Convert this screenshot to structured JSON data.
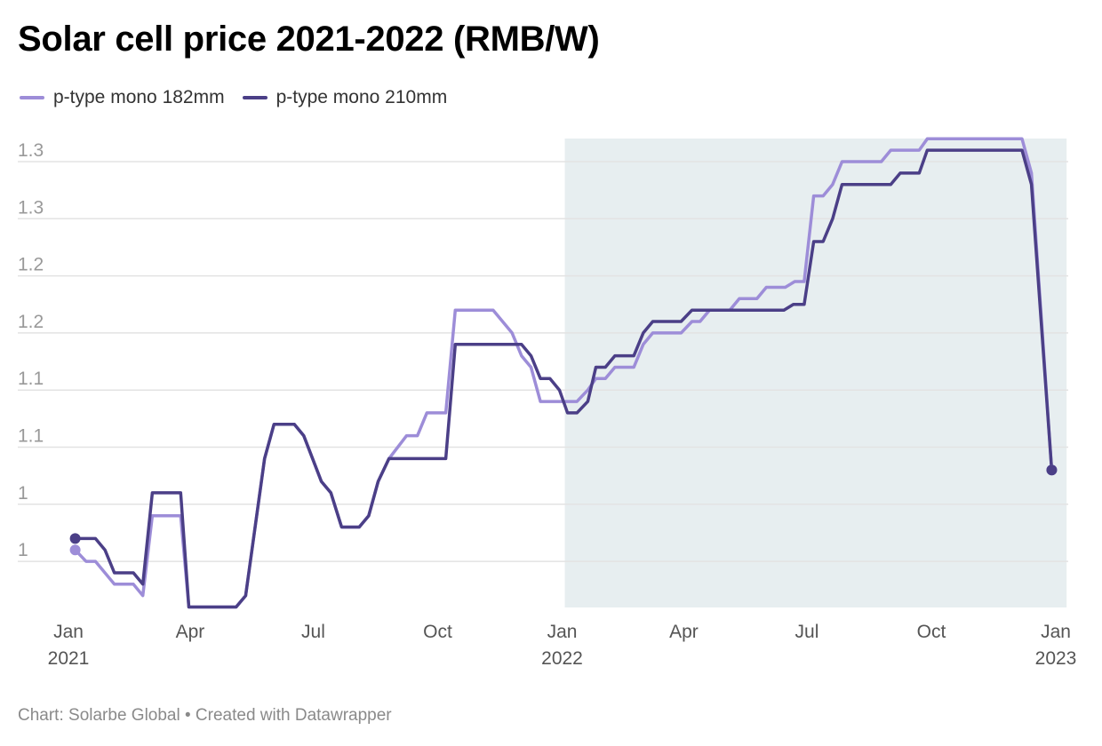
{
  "chart_data": {
    "type": "line",
    "title": "Solar cell price 2021-2022 (RMB/W)",
    "xlim": [
      "2021-01-01",
      "2023-01-01"
    ],
    "ylim": [
      0.91,
      1.32
    ],
    "grid": true,
    "legend_placement": "top-left",
    "highlight_range": [
      "2022-01-03",
      "2023-01-09"
    ],
    "highlight_color": "#e7eef0",
    "y_ticks": [
      {
        "value": 1.3,
        "label": "1.3"
      },
      {
        "value": 1.25,
        "label": "1.3"
      },
      {
        "value": 1.2,
        "label": "1.2"
      },
      {
        "value": 1.15,
        "label": "1.2"
      },
      {
        "value": 1.1,
        "label": "1.1"
      },
      {
        "value": 1.05,
        "label": "1.1"
      },
      {
        "value": 1.0,
        "label": "1"
      },
      {
        "value": 0.95,
        "label": "1"
      }
    ],
    "x_ticks": [
      {
        "date": "2021-01-01",
        "label": "Jan",
        "year": "2021"
      },
      {
        "date": "2021-04-01",
        "label": "Apr",
        "year": ""
      },
      {
        "date": "2021-07-01",
        "label": "Jul",
        "year": ""
      },
      {
        "date": "2021-10-01",
        "label": "Oct",
        "year": ""
      },
      {
        "date": "2022-01-01",
        "label": "Jan",
        "year": "2022"
      },
      {
        "date": "2022-04-01",
        "label": "Apr",
        "year": ""
      },
      {
        "date": "2022-07-01",
        "label": "Jul",
        "year": ""
      },
      {
        "date": "2022-10-01",
        "label": "Oct",
        "year": ""
      },
      {
        "date": "2023-01-01",
        "label": "Jan",
        "year": "2023"
      }
    ],
    "series": [
      {
        "name": "p-type mono 182mm",
        "color": "#9d8dd8",
        "points": [
          [
            "2021-01-06",
            0.96
          ],
          [
            "2021-01-14",
            0.95
          ],
          [
            "2021-01-21",
            0.95
          ],
          [
            "2021-02-04",
            0.93
          ],
          [
            "2021-02-18",
            0.93
          ],
          [
            "2021-02-25",
            0.92
          ],
          [
            "2021-03-04",
            0.99
          ],
          [
            "2021-03-25",
            0.99
          ],
          [
            "2021-03-31",
            0.91
          ],
          [
            "2021-05-05",
            0.91
          ],
          [
            "2021-05-12",
            0.92
          ],
          [
            "2021-05-26",
            1.04
          ],
          [
            "2021-06-02",
            1.07
          ],
          [
            "2021-06-17",
            1.07
          ],
          [
            "2021-06-24",
            1.06
          ],
          [
            "2021-07-07",
            1.02
          ],
          [
            "2021-07-14",
            1.01
          ],
          [
            "2021-07-22",
            0.98
          ],
          [
            "2021-08-04",
            0.98
          ],
          [
            "2021-08-11",
            0.99
          ],
          [
            "2021-08-18",
            1.02
          ],
          [
            "2021-08-26",
            1.04
          ],
          [
            "2021-09-08",
            1.06
          ],
          [
            "2021-09-16",
            1.06
          ],
          [
            "2021-09-23",
            1.08
          ],
          [
            "2021-10-07",
            1.08
          ],
          [
            "2021-10-14",
            1.17
          ],
          [
            "2021-11-11",
            1.17
          ],
          [
            "2021-11-25",
            1.15
          ],
          [
            "2021-12-02",
            1.13
          ],
          [
            "2021-12-09",
            1.12
          ],
          [
            "2021-12-16",
            1.09
          ],
          [
            "2022-01-12",
            1.09
          ],
          [
            "2022-01-20",
            1.1
          ],
          [
            "2022-01-26",
            1.11
          ],
          [
            "2022-02-02",
            1.11
          ],
          [
            "2022-02-09",
            1.12
          ],
          [
            "2022-02-23",
            1.12
          ],
          [
            "2022-03-02",
            1.14
          ],
          [
            "2022-03-09",
            1.15
          ],
          [
            "2022-03-30",
            1.15
          ],
          [
            "2022-04-07",
            1.16
          ],
          [
            "2022-04-13",
            1.16
          ],
          [
            "2022-04-20",
            1.17
          ],
          [
            "2022-05-05",
            1.17
          ],
          [
            "2022-05-12",
            1.18
          ],
          [
            "2022-05-25",
            1.18
          ],
          [
            "2022-06-01",
            1.19
          ],
          [
            "2022-06-15",
            1.19
          ],
          [
            "2022-06-22",
            1.195
          ],
          [
            "2022-06-29",
            1.195
          ],
          [
            "2022-07-06",
            1.27
          ],
          [
            "2022-07-13",
            1.27
          ],
          [
            "2022-07-20",
            1.28
          ],
          [
            "2022-07-27",
            1.3
          ],
          [
            "2022-08-25",
            1.3
          ],
          [
            "2022-09-01",
            1.31
          ],
          [
            "2022-09-22",
            1.31
          ],
          [
            "2022-09-28",
            1.32
          ],
          [
            "2022-12-07",
            1.32
          ],
          [
            "2022-12-14",
            1.29
          ],
          [
            "2022-12-29",
            1.03
          ]
        ]
      },
      {
        "name": "p-type mono 210mm",
        "color": "#4b3f87",
        "points": [
          [
            "2021-01-06",
            0.97
          ],
          [
            "2021-01-21",
            0.97
          ],
          [
            "2021-01-28",
            0.96
          ],
          [
            "2021-02-04",
            0.94
          ],
          [
            "2021-02-18",
            0.94
          ],
          [
            "2021-02-25",
            0.93
          ],
          [
            "2021-03-04",
            1.01
          ],
          [
            "2021-03-25",
            1.01
          ],
          [
            "2021-03-31",
            0.91
          ],
          [
            "2021-05-05",
            0.91
          ],
          [
            "2021-05-12",
            0.92
          ],
          [
            "2021-05-26",
            1.04
          ],
          [
            "2021-06-02",
            1.07
          ],
          [
            "2021-06-17",
            1.07
          ],
          [
            "2021-06-24",
            1.06
          ],
          [
            "2021-07-07",
            1.02
          ],
          [
            "2021-07-14",
            1.01
          ],
          [
            "2021-07-22",
            0.98
          ],
          [
            "2021-08-04",
            0.98
          ],
          [
            "2021-08-11",
            0.99
          ],
          [
            "2021-08-18",
            1.02
          ],
          [
            "2021-08-26",
            1.04
          ],
          [
            "2021-10-07",
            1.04
          ],
          [
            "2021-10-14",
            1.14
          ],
          [
            "2021-12-02",
            1.14
          ],
          [
            "2021-12-09",
            1.13
          ],
          [
            "2021-12-16",
            1.11
          ],
          [
            "2021-12-23",
            1.11
          ],
          [
            "2021-12-30",
            1.1
          ],
          [
            "2022-01-05",
            1.08
          ],
          [
            "2022-01-12",
            1.08
          ],
          [
            "2022-01-20",
            1.09
          ],
          [
            "2022-01-26",
            1.12
          ],
          [
            "2022-02-02",
            1.12
          ],
          [
            "2022-02-09",
            1.13
          ],
          [
            "2022-02-23",
            1.13
          ],
          [
            "2022-03-02",
            1.15
          ],
          [
            "2022-03-09",
            1.16
          ],
          [
            "2022-03-30",
            1.16
          ],
          [
            "2022-04-07",
            1.17
          ],
          [
            "2022-06-14",
            1.17
          ],
          [
            "2022-06-21",
            1.175
          ],
          [
            "2022-06-29",
            1.175
          ],
          [
            "2022-07-06",
            1.23
          ],
          [
            "2022-07-13",
            1.23
          ],
          [
            "2022-07-20",
            1.25
          ],
          [
            "2022-07-27",
            1.28
          ],
          [
            "2022-09-01",
            1.28
          ],
          [
            "2022-09-08",
            1.29
          ],
          [
            "2022-09-22",
            1.29
          ],
          [
            "2022-09-28",
            1.31
          ],
          [
            "2022-12-07",
            1.31
          ],
          [
            "2022-12-14",
            1.28
          ],
          [
            "2022-12-29",
            1.03
          ]
        ]
      }
    ]
  },
  "footer": "Chart: Solarbe Global • Created with Datawrapper"
}
